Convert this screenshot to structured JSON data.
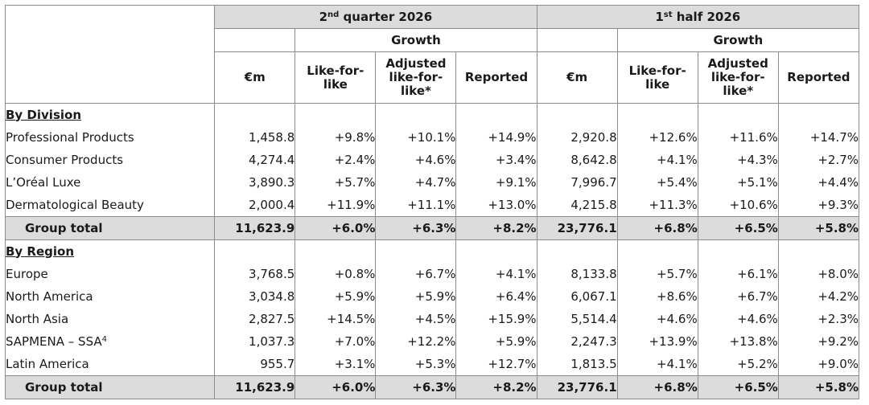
{
  "header": {
    "period_q2": "2nd quarter 2026",
    "period_q2_sup": "nd",
    "period_q2_base": "2",
    "period_q2_rest": " quarter 2026",
    "period_h1_base": "1",
    "period_h1_sup": "st",
    "period_h1_rest": " half 2026",
    "growth_label": "Growth",
    "col_em": "€m",
    "col_lfl": "Like-for-like",
    "col_adj": "Adjusted like-for-like*",
    "col_reported": "Reported"
  },
  "sections": {
    "division_title": "By Division",
    "region_title": "By Region"
  },
  "division_rows": [
    {
      "label": "Professional Products",
      "q2_em": "1,458.8",
      "q2_lfl": "+9.8%",
      "q2_adj": "+10.1%",
      "q2_rep": "+14.9%",
      "h1_em": "2,920.8",
      "h1_lfl": "+12.6%",
      "h1_adj": "+11.6%",
      "h1_rep": "+14.7%"
    },
    {
      "label": "Consumer Products",
      "q2_em": "4,274.4",
      "q2_lfl": "+2.4%",
      "q2_adj": "+4.6%",
      "q2_rep": "+3.4%",
      "h1_em": "8,642.8",
      "h1_lfl": "+4.1%",
      "h1_adj": "+4.3%",
      "h1_rep": "+2.7%"
    },
    {
      "label": "L’Oréal Luxe",
      "q2_em": "3,890.3",
      "q2_lfl": "+5.7%",
      "q2_adj": "+4.7%",
      "q2_rep": "+9.1%",
      "h1_em": "7,996.7",
      "h1_lfl": "+5.4%",
      "h1_adj": "+5.1%",
      "h1_rep": "+4.4%"
    },
    {
      "label": "Dermatological Beauty",
      "q2_em": "2,000.4",
      "q2_lfl": "+11.9%",
      "q2_adj": "+11.1%",
      "q2_rep": "+13.0%",
      "h1_em": "4,215.8",
      "h1_lfl": "+11.3%",
      "h1_adj": "+10.6%",
      "h1_rep": "+9.3%"
    }
  ],
  "division_total": {
    "label": "Group total",
    "q2_em": "11,623.9",
    "q2_lfl": "+6.0%",
    "q2_adj": "+6.3%",
    "q2_rep": "+8.2%",
    "h1_em": "23,776.1",
    "h1_lfl": "+6.8%",
    "h1_adj": "+6.5%",
    "h1_rep": "+5.8%"
  },
  "region_rows": [
    {
      "label": "Europe",
      "q2_em": "3,768.5",
      "q2_lfl": "+0.8%",
      "q2_adj": "+6.7%",
      "q2_rep": "+4.1%",
      "h1_em": "8,133.8",
      "h1_lfl": "+5.7%",
      "h1_adj": "+6.1%",
      "h1_rep": "+8.0%"
    },
    {
      "label": "North America",
      "q2_em": "3,034.8",
      "q2_lfl": "+5.9%",
      "q2_adj": "+5.9%",
      "q2_rep": "+6.4%",
      "h1_em": "6,067.1",
      "h1_lfl": "+8.6%",
      "h1_adj": "+6.7%",
      "h1_rep": "+4.2%"
    },
    {
      "label": "North Asia",
      "q2_em": "2,827.5",
      "q2_lfl": "+14.5%",
      "q2_adj": "+4.5%",
      "q2_rep": "+15.9%",
      "h1_em": "5,514.4",
      "h1_lfl": "+4.6%",
      "h1_adj": "+4.6%",
      "h1_rep": "+2.3%"
    },
    {
      "label": "SAPMENA – SSA",
      "label_sup": "4",
      "q2_em": "1,037.3",
      "q2_lfl": "+7.0%",
      "q2_adj": "+12.2%",
      "q2_rep": "+5.9%",
      "h1_em": "2,247.3",
      "h1_lfl": "+13.9%",
      "h1_adj": "+13.8%",
      "h1_rep": "+9.2%"
    },
    {
      "label": "Latin America",
      "q2_em": "955.7",
      "q2_lfl": "+3.1%",
      "q2_adj": "+5.3%",
      "q2_rep": "+12.7%",
      "h1_em": "1,813.5",
      "h1_lfl": "+4.1%",
      "h1_adj": "+5.2%",
      "h1_rep": "+9.0%"
    }
  ],
  "region_total": {
    "label": "Group total",
    "q2_em": "11,623.9",
    "q2_lfl": "+6.0%",
    "q2_adj": "+6.3%",
    "q2_rep": "+8.2%",
    "h1_em": "23,776.1",
    "h1_lfl": "+6.8%",
    "h1_adj": "+6.5%",
    "h1_rep": "+5.8%"
  },
  "colors": {
    "header_bg": "#dcdcdc",
    "total_bg": "#dcdcdc",
    "border": "#8c8c8c"
  }
}
